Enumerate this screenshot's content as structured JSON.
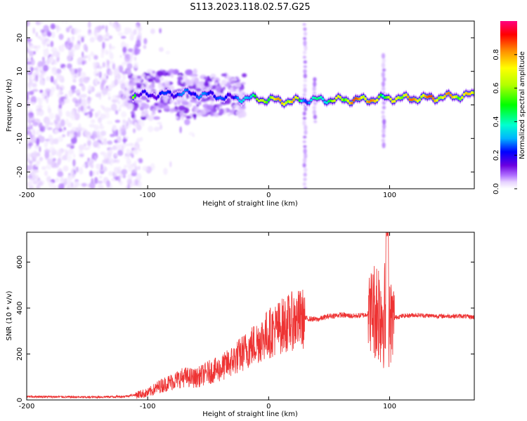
{
  "title": "S113.2023.118.02.57.G25",
  "chart_data": [
    {
      "type": "heatmap",
      "xlabel": "Height of straight line (km)",
      "ylabel": "Frequency (Hz)",
      "xlim": [
        -200,
        170
      ],
      "ylim": [
        -25,
        25
      ],
      "xticks": [
        -200,
        -100,
        0,
        100
      ],
      "yticks": [
        -20,
        -10,
        0,
        10,
        20
      ],
      "colorbar": {
        "label": "Normalized spectral amplitude",
        "range": [
          0,
          1
        ],
        "ticks": [
          "0.0",
          "0.2",
          "0.4",
          "0.6",
          "0.8"
        ],
        "colormap": [
          "#ffffff",
          "#e6d2ff",
          "#c090ff",
          "#8a3cf0",
          "#6a00e0",
          "#0000ff",
          "#00b4ff",
          "#00ffd0",
          "#00ff00",
          "#b4ff00",
          "#ffff00",
          "#ff9000",
          "#ff0000",
          "#ff0080"
        ]
      },
      "ridge": [
        {
          "height": -110,
          "freq": 3.0,
          "amp": 0.35
        },
        {
          "height": -90,
          "freq": 3.0,
          "amp": 0.4
        },
        {
          "height": -70,
          "freq": 3.5,
          "amp": 0.45
        },
        {
          "height": -50,
          "freq": 3.0,
          "amp": 0.45
        },
        {
          "height": -30,
          "freq": 2.0,
          "amp": 0.4
        },
        {
          "height": -15,
          "freq": 2.0,
          "amp": 0.6
        },
        {
          "height": 0,
          "freq": 1.5,
          "amp": 0.8
        },
        {
          "height": 20,
          "freq": 1.0,
          "amp": 0.9
        },
        {
          "height": 28,
          "freq": 1.5,
          "amp": 0.5
        },
        {
          "height": 45,
          "freq": 1.5,
          "amp": 0.6
        },
        {
          "height": 60,
          "freq": 1.5,
          "amp": 0.8
        },
        {
          "height": 80,
          "freq": 1.5,
          "amp": 0.95
        },
        {
          "height": 95,
          "freq": 2.0,
          "amp": 0.7
        },
        {
          "height": 110,
          "freq": 2.0,
          "amp": 0.85
        },
        {
          "height": 130,
          "freq": 2.0,
          "amp": 0.9
        },
        {
          "height": 150,
          "freq": 2.5,
          "amp": 0.85
        },
        {
          "height": 170,
          "freq": 3.0,
          "amp": 0.8
        }
      ],
      "vertical_streaks": [
        {
          "height": 30,
          "freq_range": [
            -25,
            25
          ]
        },
        {
          "height": 38,
          "freq_range": [
            -5,
            8
          ]
        },
        {
          "height": 95,
          "freq_range": [
            -12,
            16
          ]
        }
      ]
    },
    {
      "type": "line",
      "xlabel": "Height of straight line (km)",
      "ylabel": "SNR (10 * v/v)",
      "xlim": [
        -200,
        170
      ],
      "ylim": [
        0,
        730
      ],
      "xticks": [
        -200,
        -100,
        0,
        100
      ],
      "yticks": [
        0,
        200,
        400,
        600
      ],
      "series": [
        {
          "color": "#ee3333",
          "x": [
            -200,
            -150,
            -120,
            -100,
            -90,
            -80,
            -70,
            -60,
            -50,
            -40,
            -30,
            -20,
            -10,
            0,
            10,
            20,
            30,
            40,
            50,
            60,
            70,
            80,
            85,
            90,
            95,
            100,
            105,
            110,
            120,
            140,
            160,
            170
          ],
          "y": [
            15,
            12,
            15,
            30,
            60,
            80,
            100,
            95,
            120,
            135,
            170,
            210,
            250,
            290,
            320,
            345,
            355,
            350,
            365,
            370,
            365,
            370,
            390,
            400,
            380,
            340,
            360,
            365,
            370,
            365,
            365,
            360
          ]
        }
      ]
    }
  ]
}
